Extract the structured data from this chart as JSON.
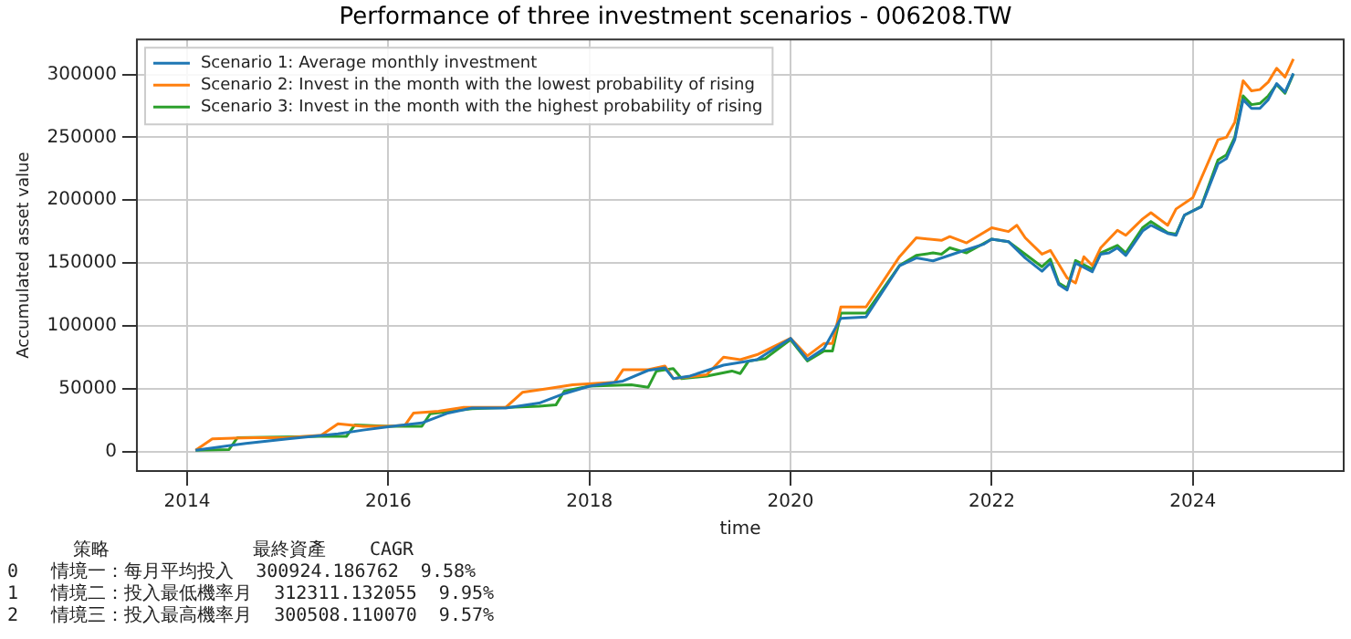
{
  "chart_data": {
    "type": "line",
    "title": "Performance of three investment scenarios - 006208.TW",
    "xlabel": "time",
    "ylabel": "Accumulated asset value",
    "xlim": [
      "2013-07",
      "2025-07"
    ],
    "xticks": [
      "2014",
      "2016",
      "2018",
      "2020",
      "2022",
      "2024"
    ],
    "ylim": [
      -15600,
      327900
    ],
    "yticks": [
      0,
      50000,
      100000,
      150000,
      200000,
      250000,
      300000
    ],
    "grid": true,
    "legend": "top left",
    "marker": "none",
    "line_style": "solid",
    "series": [
      {
        "name": "Scenario 1: Average monthly investment",
        "color": "#1f77b4",
        "x": [
          "2014-02",
          "2014-08",
          "2015-01",
          "2015-07",
          "2015-10",
          "2016-01",
          "2016-05",
          "2016-08",
          "2016-11",
          "2017-03",
          "2017-07",
          "2017-10",
          "2018-01",
          "2018-05",
          "2018-08",
          "2018-10",
          "2018-11",
          "2019-01",
          "2019-05",
          "2019-09",
          "2020-01",
          "2020-03",
          "2020-05",
          "2020-07",
          "2020-10",
          "2021-02",
          "2021-04",
          "2021-06",
          "2021-09",
          "2021-12",
          "2022-01",
          "2022-03",
          "2022-05",
          "2022-07",
          "2022-08",
          "2022-09",
          "2022-10",
          "2022-11",
          "2023-01",
          "2023-02",
          "2023-03",
          "2023-04",
          "2023-05",
          "2023-07",
          "2023-08",
          "2023-10",
          "2023-11",
          "2023-12",
          "2024-02",
          "2024-04",
          "2024-05",
          "2024-06",
          "2024-07",
          "2024-08",
          "2024-09",
          "2024-10",
          "2024-11",
          "2024-12",
          "2025-01"
        ],
        "values": [
          1000,
          6400,
          10000,
          14000,
          17000,
          19700,
          22700,
          30300,
          34600,
          34600,
          38500,
          46000,
          52000,
          56000,
          64500,
          66500,
          58000,
          60000,
          68700,
          73000,
          90000,
          73000,
          81900,
          106000,
          107000,
          147700,
          154000,
          151700,
          158400,
          164800,
          169000,
          167000,
          154000,
          143400,
          150000,
          132800,
          128500,
          150000,
          143000,
          157000,
          158000,
          162000,
          156000,
          175400,
          180000,
          173500,
          172000,
          188200,
          194600,
          228800,
          233000,
          248000,
          280000,
          273000,
          273000,
          280000,
          292800,
          286000,
          300924
        ]
      },
      {
        "name": "Scenario 2: Invest in the month with the lowest probability of rising",
        "color": "#ff7f0e",
        "x": [
          "2014-02",
          "2014-04",
          "2014-09",
          "2015-01",
          "2015-05",
          "2015-07",
          "2015-10",
          "2016-01",
          "2016-03",
          "2016-04",
          "2016-07",
          "2016-10",
          "2017-03",
          "2017-05",
          "2017-08",
          "2017-11",
          "2018-04",
          "2018-05",
          "2018-08",
          "2018-10",
          "2018-11",
          "2019-03",
          "2019-05",
          "2019-07",
          "2019-09",
          "2020-01",
          "2020-03",
          "2020-05",
          "2020-06",
          "2020-07",
          "2020-10",
          "2021-02",
          "2021-04",
          "2021-07",
          "2021-08",
          "2021-10",
          "2022-01",
          "2022-03",
          "2022-04",
          "2022-05",
          "2022-07",
          "2022-08",
          "2022-10",
          "2022-11",
          "2022-12",
          "2023-01",
          "2023-02",
          "2023-04",
          "2023-05",
          "2023-07",
          "2023-08",
          "2023-10",
          "2023-11",
          "2024-01",
          "2024-04",
          "2024-05",
          "2024-06",
          "2024-07",
          "2024-08",
          "2024-09",
          "2024-10",
          "2024-11",
          "2024-12",
          "2025-01"
        ],
        "values": [
          1000,
          10000,
          11000,
          11000,
          13000,
          22000,
          20000,
          20000,
          21000,
          30500,
          32000,
          35000,
          35000,
          47000,
          50000,
          53000,
          55000,
          65000,
          65000,
          68000,
          58000,
          61000,
          75000,
          73000,
          77000,
          90000,
          76000,
          86000,
          86000,
          115000,
          115000,
          155000,
          170000,
          168000,
          171000,
          166000,
          178000,
          175000,
          180000,
          170000,
          157000,
          160000,
          138000,
          134000,
          155000,
          148000,
          162000,
          176000,
          172000,
          185000,
          190000,
          180000,
          193000,
          202000,
          248000,
          250000,
          262000,
          295000,
          287000,
          288000,
          294000,
          305000,
          298000,
          312311
        ]
      },
      {
        "name": "Scenario 3: Invest in the month with the highest probability of rising",
        "color": "#2ca02c",
        "x": [
          "2014-02",
          "2014-06",
          "2014-07",
          "2015-05",
          "2015-08",
          "2015-09",
          "2016-01",
          "2016-05",
          "2016-06",
          "2016-11",
          "2017-07",
          "2017-09",
          "2017-10",
          "2018-01",
          "2018-06",
          "2018-08",
          "2018-09",
          "2018-11",
          "2018-12",
          "2019-03",
          "2019-06",
          "2019-07",
          "2019-08",
          "2019-10",
          "2020-01",
          "2020-03",
          "2020-05",
          "2020-06",
          "2020-07",
          "2020-10",
          "2021-02",
          "2021-04",
          "2021-06",
          "2021-07",
          "2021-08",
          "2021-10",
          "2022-01",
          "2022-03",
          "2022-05",
          "2022-07",
          "2022-08",
          "2022-09",
          "2022-10",
          "2022-11",
          "2023-01",
          "2023-02",
          "2023-04",
          "2023-05",
          "2023-07",
          "2023-08",
          "2023-10",
          "2023-11",
          "2023-12",
          "2024-02",
          "2024-04",
          "2024-05",
          "2024-06",
          "2024-07",
          "2024-08",
          "2024-09",
          "2024-10",
          "2024-11",
          "2024-12",
          "2025-01"
        ],
        "values": [
          1000,
          1500,
          11000,
          12000,
          12000,
          21000,
          20000,
          20000,
          30000,
          34000,
          36000,
          37000,
          48000,
          52000,
          53000,
          51000,
          64000,
          66000,
          58000,
          60000,
          64000,
          62000,
          72000,
          74000,
          89000,
          72000,
          80000,
          80000,
          110000,
          110000,
          148000,
          156000,
          158000,
          157000,
          162000,
          158000,
          169000,
          167000,
          157000,
          147000,
          153000,
          134000,
          130000,
          152000,
          145000,
          158000,
          164000,
          158000,
          178000,
          183000,
          174000,
          173000,
          188000,
          195000,
          232000,
          236000,
          250000,
          283000,
          276000,
          277000,
          283000,
          292000,
          285000,
          300508
        ]
      }
    ],
    "annotations": [
      "      策略             最終資產    CAGR",
      "0   情境一：每月平均投入  300924.186762  9.58%",
      "1   情境二：投入最低機率月  312311.132055  9.95%",
      "2   情境三：投入最高機率月  300508.110070  9.57%"
    ]
  }
}
